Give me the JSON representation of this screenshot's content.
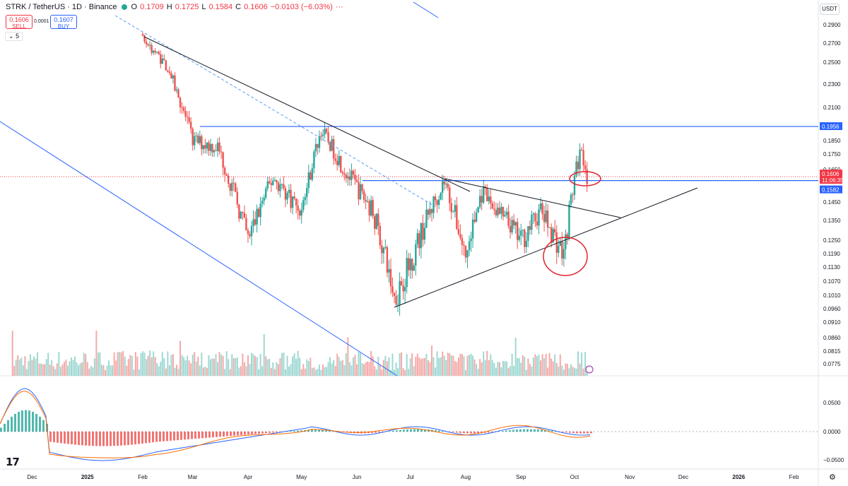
{
  "header": {
    "symbol": "STRK / TetherUS · 1D · Binance",
    "open": "0.1709",
    "high": "0.1725",
    "low": "0.1584",
    "close": "0.1606",
    "change": "−0.0103 (−6.03%)",
    "o_label": "O",
    "h_label": "H",
    "l_label": "L",
    "c_label": "C",
    "more": "···"
  },
  "trade": {
    "sell_price": "0.1606",
    "sell_label": "SELL",
    "spread": "0.0001",
    "buy_price": "0.1607",
    "buy_label": "BUY"
  },
  "indicator_count": "5",
  "currency": "USDT",
  "colors": {
    "up": "#26a69a",
    "down": "#ef5350",
    "blue_line": "#2962ff",
    "trend": "#131722",
    "circle": "#e0242f",
    "macd": "#2962ff",
    "signal": "#ff6d00"
  },
  "chart_data": {
    "type": "candlestick",
    "price_axis": [
      "0.2900",
      "0.2700",
      "0.2500",
      "0.2300",
      "0.2100",
      "0.1850",
      "0.1750",
      "0.1650",
      "0.1450",
      "0.1350",
      "0.1250",
      "0.1190",
      "0.1130",
      "0.1070",
      "0.1010",
      "0.0960",
      "0.0910",
      "0.0860",
      "0.0815",
      "0.0775"
    ],
    "price_markers": [
      {
        "value": "0.1956",
        "color": "#2962ff"
      },
      {
        "value": "0.1606",
        "color": "#f23645"
      },
      {
        "value": "11:06:35",
        "color": "#f23645"
      },
      {
        "value": "0.1582",
        "color": "#2962ff"
      }
    ],
    "macd_axis": [
      "0.0500",
      "0.0000",
      "−0.0500"
    ],
    "time_axis": [
      "Dec",
      "2025",
      "Feb",
      "Mar",
      "Apr",
      "May",
      "Jun",
      "Jul",
      "Aug",
      "Sep",
      "Oct",
      "Nov",
      "Dec",
      "2026",
      "Feb"
    ],
    "seed_points": [
      {
        "date": "2025-02-01",
        "close": 0.275
      },
      {
        "date": "2025-02-15",
        "close": 0.245
      },
      {
        "date": "2025-03-01",
        "close": 0.185
      },
      {
        "date": "2025-03-15",
        "close": 0.18
      },
      {
        "date": "2025-04-01",
        "close": 0.125
      },
      {
        "date": "2025-04-15",
        "close": 0.16
      },
      {
        "date": "2025-05-01",
        "close": 0.14
      },
      {
        "date": "2025-05-12",
        "close": 0.193
      },
      {
        "date": "2025-05-25",
        "close": 0.165
      },
      {
        "date": "2025-06-10",
        "close": 0.14
      },
      {
        "date": "2025-06-22",
        "close": 0.1
      },
      {
        "date": "2025-07-01",
        "close": 0.115
      },
      {
        "date": "2025-07-20",
        "close": 0.158
      },
      {
        "date": "2025-08-01",
        "close": 0.117
      },
      {
        "date": "2025-08-10",
        "close": 0.15
      },
      {
        "date": "2025-09-01",
        "close": 0.125
      },
      {
        "date": "2025-09-12",
        "close": 0.14
      },
      {
        "date": "2025-09-25",
        "close": 0.118
      },
      {
        "date": "2025-10-01",
        "close": 0.16
      },
      {
        "date": "2025-10-05",
        "close": 0.18
      },
      {
        "date": "2025-10-08",
        "close": 0.1606
      }
    ],
    "horizontal_levels": [
      0.1956,
      0.1582
    ]
  }
}
